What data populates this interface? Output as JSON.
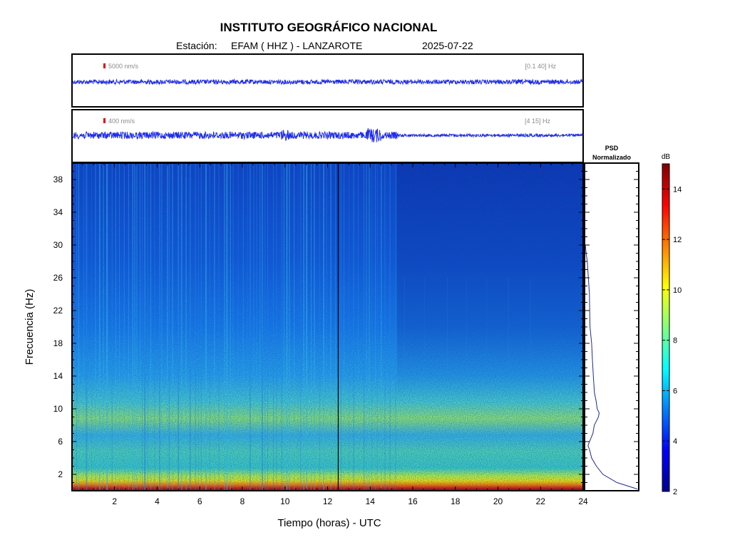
{
  "header": {
    "title": "INSTITUTO GEOGRÁFICO NACIONAL",
    "station_label": "Estación:",
    "station": "EFAM ( HHZ ) - LANZAROTE",
    "date": "2025-07-22"
  },
  "traces": [
    {
      "scale_label": "5000 nm/s",
      "band_label": "[0.1 40] Hz",
      "color": "#1f2dea"
    },
    {
      "scale_label": "400 nm/s",
      "band_label": "[4 15] Hz",
      "color": "#1f2dea"
    }
  ],
  "psd_panel": {
    "title_line1": "PSD",
    "title_line2": "Normalizado"
  },
  "colorbar": {
    "unit": "dB",
    "min": 2,
    "max": 15,
    "ticks": [
      "2",
      "4",
      "6",
      "8",
      "10",
      "12",
      "14"
    ]
  },
  "colors": {
    "scale_bar": "#e00000",
    "trace": "#1f2dea",
    "psd_line": "#1a2a9a",
    "accent_line": "#000000"
  },
  "chart_data": [
    {
      "type": "heatmap",
      "title": "INSTITUTO GEOGRÁFICO NACIONAL",
      "xlabel": "Tiempo (horas) - UTC",
      "ylabel": "Frecuencia  (Hz)",
      "xlim": [
        0,
        24
      ],
      "ylim": [
        0,
        40
      ],
      "xticks": [
        "2",
        "4",
        "6",
        "8",
        "10",
        "12",
        "14",
        "16",
        "18",
        "20",
        "22",
        "24"
      ],
      "yticks": [
        "2",
        "6",
        "10",
        "14",
        "18",
        "22",
        "26",
        "30",
        "34",
        "38"
      ],
      "colorbar_label": "dB",
      "colorbar_range": [
        2,
        15
      ],
      "marker_time": 12.5,
      "noise_change_time": 15.3
    },
    {
      "type": "line",
      "title": "PSD Normalizado",
      "description": "normalized PSD vs frequency",
      "frequency": [
        0.2,
        1,
        2,
        3,
        4,
        5,
        5.5,
        6,
        7,
        8,
        9,
        9.5,
        10,
        11,
        12,
        14,
        16,
        18,
        20,
        22,
        24,
        26,
        28,
        29,
        30
      ],
      "value": [
        1.0,
        0.6,
        0.33,
        0.22,
        0.12,
        0.08,
        0.05,
        0.08,
        0.15,
        0.18,
        0.26,
        0.27,
        0.22,
        0.2,
        0.17,
        0.16,
        0.14,
        0.12,
        0.1,
        0.09,
        0.08,
        0.06,
        0.04,
        0.02,
        0.0
      ]
    }
  ]
}
